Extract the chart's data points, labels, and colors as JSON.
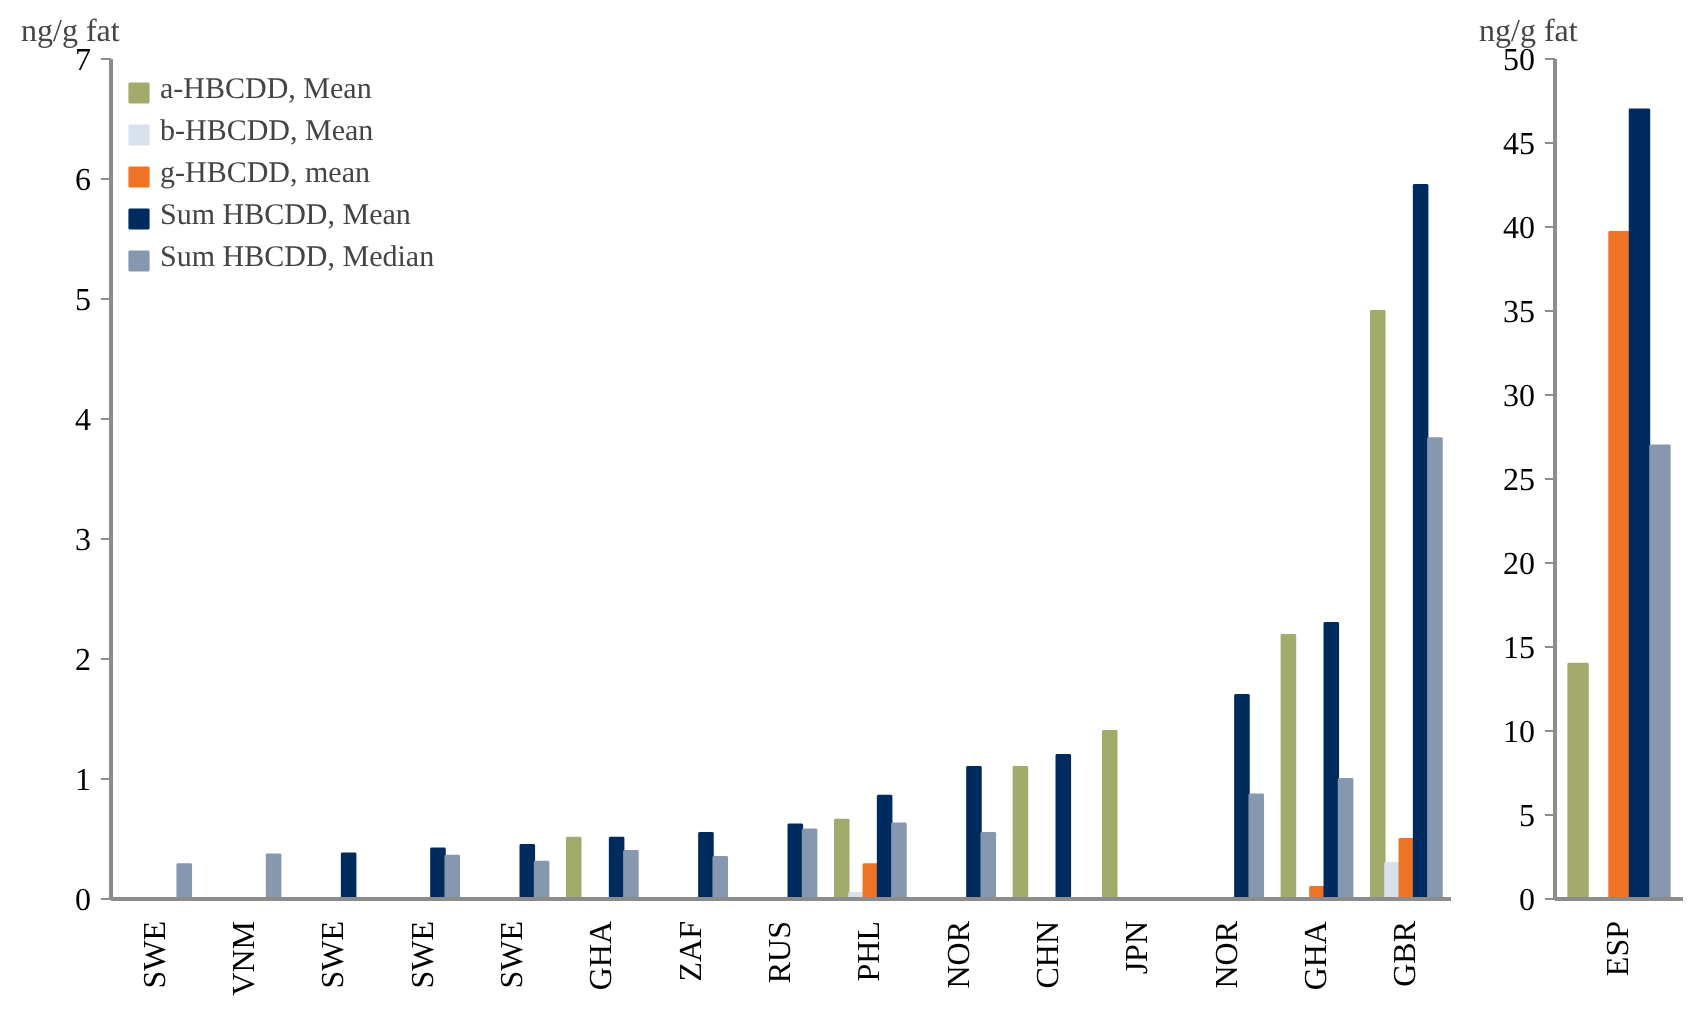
{
  "chart_data": [
    {
      "type": "bar",
      "ylabel": "ng/g fat",
      "categories": [
        "SWE",
        "VNM",
        "SWE",
        "SWE",
        "SWE",
        "GHA",
        "ZAF",
        "RUS",
        "PHL",
        "NOR",
        "CHN",
        "JPN",
        "NOR",
        "GHA",
        "GBR"
      ],
      "ylim": [
        0,
        7
      ],
      "yticks": [
        0,
        1,
        2,
        3,
        4,
        5,
        6,
        7
      ],
      "legend": "top left",
      "series": [
        {
          "name": "a-HBCDD, Mean",
          "color": "#a3ab6c",
          "values": [
            null,
            null,
            null,
            null,
            null,
            0.51,
            null,
            null,
            0.66,
            null,
            1.1,
            1.4,
            null,
            2.2,
            4.9
          ]
        },
        {
          "name": "b-HBCDD, Mean",
          "color": "#d9e1ec",
          "values": [
            null,
            null,
            null,
            null,
            null,
            null,
            null,
            null,
            0.05,
            null,
            null,
            null,
            null,
            null,
            0.3
          ]
        },
        {
          "name": "g-HBCDD, mean",
          "color": "#ef7325",
          "values": [
            null,
            null,
            null,
            null,
            null,
            null,
            null,
            null,
            0.29,
            null,
            null,
            null,
            null,
            0.1,
            0.5
          ]
        },
        {
          "name": "Sum HBCDD, Mean",
          "color": "#002b5e",
          "values": [
            null,
            null,
            0.38,
            0.42,
            0.45,
            0.51,
            0.55,
            0.62,
            0.86,
            1.1,
            1.2,
            null,
            1.7,
            2.3,
            5.95
          ]
        },
        {
          "name": "Sum HBCDD, Median",
          "color": "#8598b0",
          "values": [
            0.29,
            0.37,
            null,
            0.36,
            0.31,
            0.4,
            0.35,
            0.58,
            0.63,
            0.55,
            null,
            null,
            0.87,
            1.0,
            3.84
          ]
        }
      ]
    },
    {
      "type": "bar",
      "ylabel": "ng/g fat",
      "categories": [
        "ESP"
      ],
      "ylim": [
        0,
        50
      ],
      "yticks": [
        0,
        5,
        10,
        15,
        20,
        25,
        30,
        35,
        40,
        45,
        50
      ],
      "series": [
        {
          "color": "#a3ab6c",
          "values": [
            14
          ]
        },
        {
          "color": "#d9e1ec",
          "values": [
            null
          ]
        },
        {
          "color": "#ef7325",
          "values": [
            39.7
          ]
        },
        {
          "color": "#002b5e",
          "values": [
            47
          ]
        },
        {
          "color": "#8598b0",
          "values": [
            27
          ]
        }
      ]
    }
  ]
}
